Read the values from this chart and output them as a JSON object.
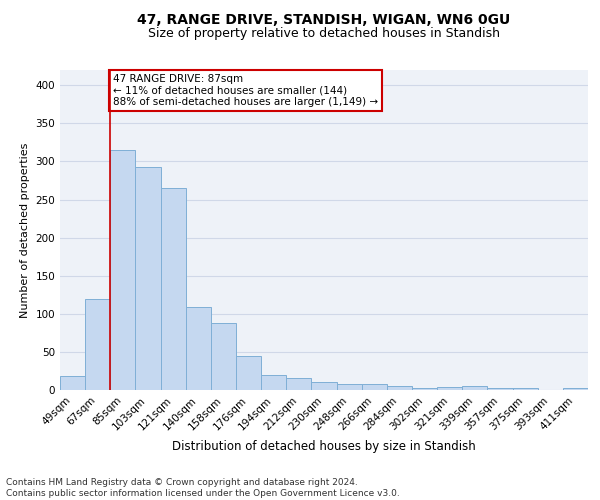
{
  "title": "47, RANGE DRIVE, STANDISH, WIGAN, WN6 0GU",
  "subtitle": "Size of property relative to detached houses in Standish",
  "xlabel": "Distribution of detached houses by size in Standish",
  "ylabel": "Number of detached properties",
  "categories": [
    "49sqm",
    "67sqm",
    "85sqm",
    "103sqm",
    "121sqm",
    "140sqm",
    "158sqm",
    "176sqm",
    "194sqm",
    "212sqm",
    "230sqm",
    "248sqm",
    "266sqm",
    "284sqm",
    "302sqm",
    "321sqm",
    "339sqm",
    "357sqm",
    "375sqm",
    "393sqm",
    "411sqm"
  ],
  "values": [
    19,
    119,
    315,
    293,
    265,
    109,
    88,
    45,
    20,
    16,
    10,
    8,
    8,
    5,
    3,
    4,
    5,
    3,
    2,
    0,
    2
  ],
  "bar_color": "#c5d8f0",
  "bar_edge_color": "#7fafd6",
  "highlight_index": 2,
  "highlight_line_color": "#cc0000",
  "annotation_text": "47 RANGE DRIVE: 87sqm\n← 11% of detached houses are smaller (144)\n88% of semi-detached houses are larger (1,149) →",
  "annotation_box_color": "#ffffff",
  "annotation_box_edge": "#cc0000",
  "ylim": [
    0,
    420
  ],
  "yticks": [
    0,
    50,
    100,
    150,
    200,
    250,
    300,
    350,
    400
  ],
  "grid_color": "#d0d8e8",
  "bg_color": "#eef2f8",
  "footer": "Contains HM Land Registry data © Crown copyright and database right 2024.\nContains public sector information licensed under the Open Government Licence v3.0.",
  "title_fontsize": 10,
  "subtitle_fontsize": 9,
  "xlabel_fontsize": 8.5,
  "ylabel_fontsize": 8,
  "tick_fontsize": 7.5,
  "annotation_fontsize": 7.5,
  "footer_fontsize": 6.5
}
